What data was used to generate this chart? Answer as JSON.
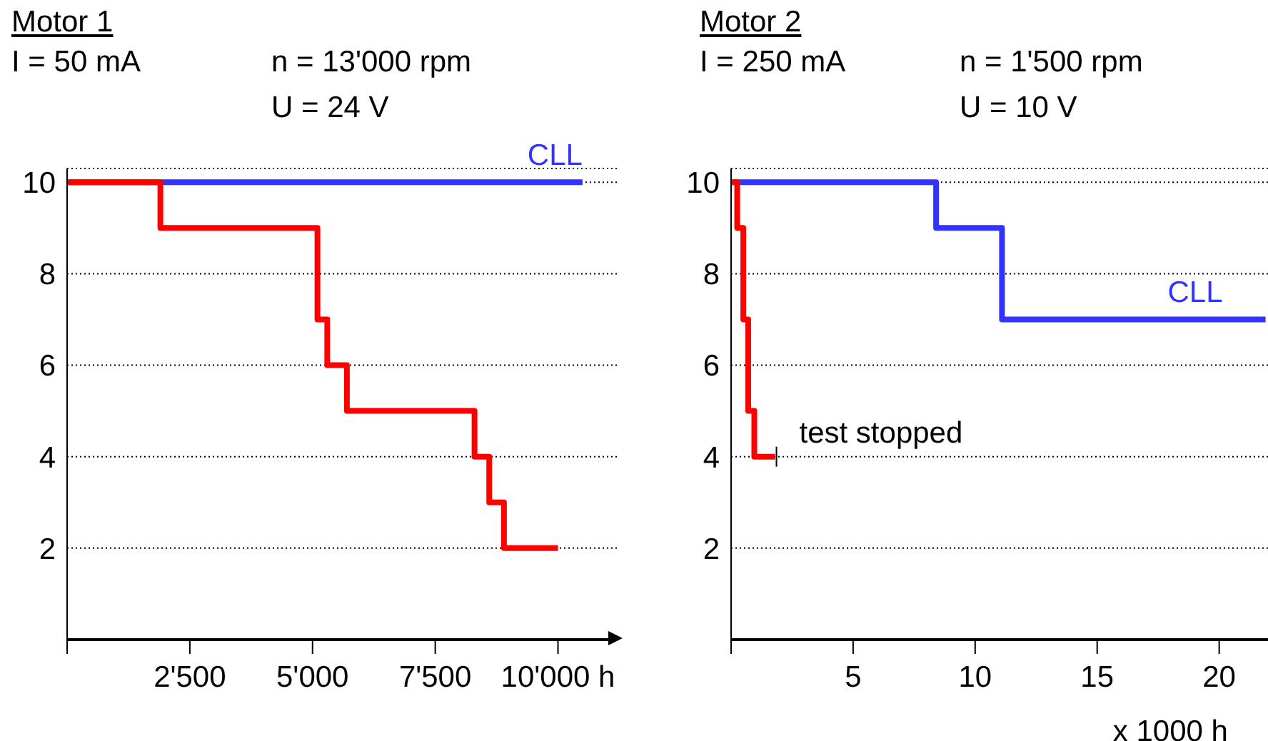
{
  "chart_data": [
    {
      "type": "step",
      "title": "Motor 1",
      "annotations": [
        "I = 50 mA",
        "n = 13'000 rpm",
        "U = 24 V"
      ],
      "xlim": [
        0,
        11200
      ],
      "xticks": [
        {
          "value": 0,
          "label": null
        },
        {
          "value": 2500,
          "label": "2'500"
        },
        {
          "value": 5000,
          "label": "5'000"
        },
        {
          "value": 7500,
          "label": "7'500"
        },
        {
          "value": 10000,
          "label": "10'000 h"
        }
      ],
      "ylim": [
        0,
        10.3
      ],
      "yticks": [
        2,
        4,
        6,
        8,
        10
      ],
      "grid": "y",
      "marker": "none",
      "line_style": "solid",
      "series": [
        {
          "name": "CLL",
          "color": "#3333ff",
          "x": [
            0,
            10500
          ],
          "values": [
            10,
            10
          ]
        },
        {
          "color": "#ff0000",
          "x": [
            0,
            1900,
            5100,
            5300,
            5700,
            8300,
            8600,
            8900,
            10000
          ],
          "values": [
            10,
            9,
            7,
            6,
            5,
            4,
            3,
            2,
            2
          ]
        }
      ]
    },
    {
      "type": "step",
      "title": "Motor 2",
      "xlabel": "x 1000 h",
      "annotations": [
        "I = 250 mA",
        "n = 1'500 rpm",
        "U = 10 V",
        {
          "text": "test stopped",
          "x": 1.8,
          "y": 4
        }
      ],
      "xlim": [
        0,
        22
      ],
      "xticks": [
        {
          "value": 0,
          "label": null
        },
        5,
        10,
        15,
        20
      ],
      "ylim": [
        0,
        10.3
      ],
      "yticks": [
        2,
        4,
        6,
        8,
        10
      ],
      "grid": "y",
      "marker": "none",
      "line_style": "solid",
      "series": [
        {
          "name": "CLL",
          "color": "#3333ff",
          "x": [
            0,
            8.4,
            11.1,
            21.9
          ],
          "values": [
            10,
            9,
            7,
            7
          ]
        },
        {
          "color": "#ff0000",
          "x": [
            0,
            0.25,
            0.5,
            0.7,
            0.95,
            1.8
          ],
          "values": [
            10,
            9,
            7,
            5,
            4,
            4
          ]
        }
      ]
    }
  ]
}
